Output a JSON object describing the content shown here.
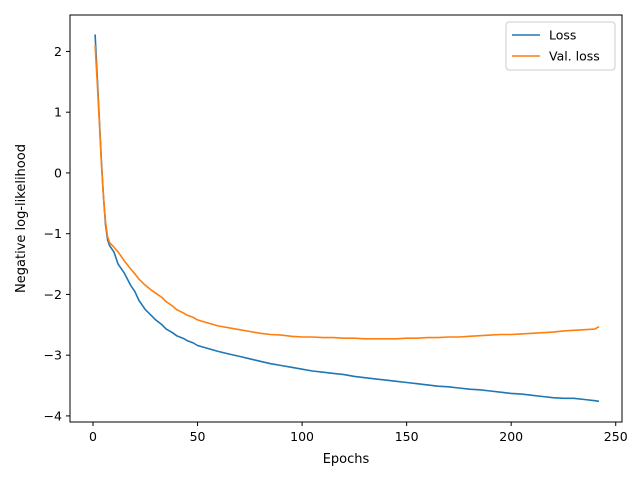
{
  "chart_data": {
    "type": "line",
    "title": "",
    "xlabel": "Epochs",
    "ylabel": "Negative log-likelihood",
    "xlim": [
      -11,
      253
    ],
    "ylim": [
      -4.1,
      2.6
    ],
    "xticks": [
      0,
      50,
      100,
      150,
      200,
      250
    ],
    "yticks": [
      2,
      1,
      0,
      -1,
      -2,
      -3,
      -4
    ],
    "tick_labels_x": [
      "0",
      "50",
      "100",
      "150",
      "200",
      "250"
    ],
    "tick_labels_y": [
      "2",
      "1",
      "0",
      "−1",
      "−2",
      "−3",
      "−4"
    ],
    "grid": false,
    "legend_position": "top-right",
    "series": [
      {
        "name": "Loss",
        "color": "#1f77b4",
        "x": [
          1,
          2,
          3,
          4,
          5,
          6,
          7,
          8,
          10,
          12,
          15,
          18,
          20,
          22,
          25,
          28,
          30,
          33,
          35,
          38,
          40,
          43,
          45,
          48,
          50,
          55,
          60,
          65,
          70,
          75,
          80,
          85,
          90,
          95,
          100,
          105,
          110,
          115,
          120,
          125,
          130,
          135,
          140,
          145,
          150,
          155,
          160,
          165,
          170,
          175,
          180,
          185,
          190,
          195,
          200,
          205,
          210,
          215,
          220,
          225,
          230,
          235,
          240,
          242
        ],
        "y": [
          2.28,
          1.6,
          0.9,
          0.2,
          -0.4,
          -0.85,
          -1.1,
          -1.2,
          -1.3,
          -1.5,
          -1.65,
          -1.85,
          -1.95,
          -2.1,
          -2.25,
          -2.35,
          -2.42,
          -2.5,
          -2.57,
          -2.63,
          -2.68,
          -2.72,
          -2.76,
          -2.8,
          -2.84,
          -2.89,
          -2.94,
          -2.98,
          -3.02,
          -3.06,
          -3.1,
          -3.14,
          -3.17,
          -3.2,
          -3.23,
          -3.26,
          -3.28,
          -3.3,
          -3.32,
          -3.35,
          -3.37,
          -3.39,
          -3.41,
          -3.43,
          -3.45,
          -3.47,
          -3.49,
          -3.51,
          -3.52,
          -3.54,
          -3.56,
          -3.57,
          -3.59,
          -3.61,
          -3.63,
          -3.64,
          -3.66,
          -3.68,
          -3.7,
          -3.71,
          -3.71,
          -3.73,
          -3.75,
          -3.76
        ]
      },
      {
        "name": "Val. loss",
        "color": "#ff7f0e",
        "x": [
          1,
          2,
          3,
          4,
          5,
          6,
          7,
          8,
          10,
          12,
          15,
          18,
          20,
          22,
          25,
          28,
          30,
          33,
          35,
          38,
          40,
          43,
          45,
          48,
          50,
          55,
          60,
          65,
          70,
          75,
          80,
          85,
          90,
          95,
          100,
          105,
          110,
          115,
          120,
          125,
          130,
          135,
          140,
          145,
          150,
          155,
          160,
          165,
          170,
          175,
          180,
          185,
          190,
          195,
          200,
          205,
          210,
          215,
          220,
          225,
          230,
          235,
          240,
          242
        ],
        "y": [
          2.1,
          1.5,
          0.85,
          0.15,
          -0.4,
          -0.8,
          -1.05,
          -1.15,
          -1.22,
          -1.3,
          -1.45,
          -1.58,
          -1.66,
          -1.75,
          -1.85,
          -1.93,
          -1.98,
          -2.05,
          -2.12,
          -2.19,
          -2.25,
          -2.3,
          -2.34,
          -2.38,
          -2.42,
          -2.47,
          -2.52,
          -2.55,
          -2.58,
          -2.61,
          -2.64,
          -2.66,
          -2.67,
          -2.69,
          -2.7,
          -2.7,
          -2.71,
          -2.71,
          -2.72,
          -2.72,
          -2.73,
          -2.73,
          -2.73,
          -2.73,
          -2.72,
          -2.72,
          -2.71,
          -2.71,
          -2.7,
          -2.7,
          -2.69,
          -2.68,
          -2.67,
          -2.66,
          -2.66,
          -2.65,
          -2.64,
          -2.63,
          -2.62,
          -2.6,
          -2.59,
          -2.58,
          -2.57,
          -2.53
        ]
      }
    ]
  }
}
